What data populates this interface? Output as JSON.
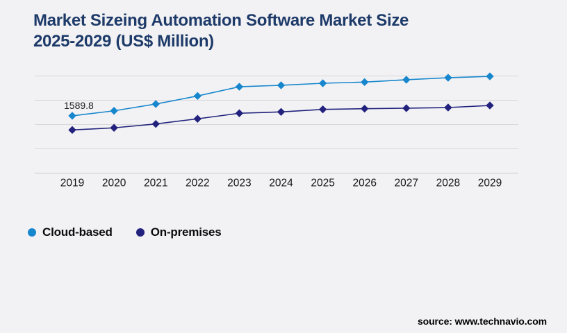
{
  "page": {
    "background": "#f2f2f4"
  },
  "header": {
    "title_line1": "Market Sizeing Automation Software Market Size",
    "title_line2": "2025-2029 (US$ Million)",
    "title_color": "#1d3a69"
  },
  "legend": {
    "items": [
      {
        "label": "Cloud-based",
        "color": "#1787cd"
      },
      {
        "label": "On-premises",
        "color": "#22227e"
      }
    ]
  },
  "footer": {
    "source_text": "source: www.technavio.com"
  },
  "chart_data": {
    "type": "line",
    "title": "Market Sizeing Automation Software Market Size 2025-2029 (US$ Million)",
    "categories": [
      "2019",
      "2020",
      "2021",
      "2022",
      "2023",
      "2024",
      "2025",
      "2026",
      "2027",
      "2028",
      "2029"
    ],
    "series": [
      {
        "name": "Cloud-based",
        "color": "#1787cd",
        "marker": "diamond",
        "values": [
          1589.8,
          1641,
          1711,
          1794,
          1889,
          1904,
          1925,
          1937,
          1961,
          1982,
          1996
        ]
      },
      {
        "name": "On-premises",
        "color": "#22227e",
        "marker": "diamond",
        "values": [
          1444,
          1466,
          1506,
          1559,
          1616,
          1630,
          1656,
          1663,
          1668,
          1675,
          1696
        ]
      }
    ],
    "annotation": {
      "series": "Cloud-based",
      "category": "2019",
      "text": "1589.8"
    },
    "xlabel": "",
    "ylabel": "",
    "ylim": [
      1000,
      2000
    ],
    "gridline_step": 250,
    "grid": "horizontal",
    "yaxis_labels_visible": false,
    "legend_position": "bottom-left",
    "colors": {
      "gridline": "#d8d8da",
      "axis_line": "#c8c8ca",
      "tick_label": "#161616",
      "annotation_text": "#1c1c1c"
    }
  }
}
